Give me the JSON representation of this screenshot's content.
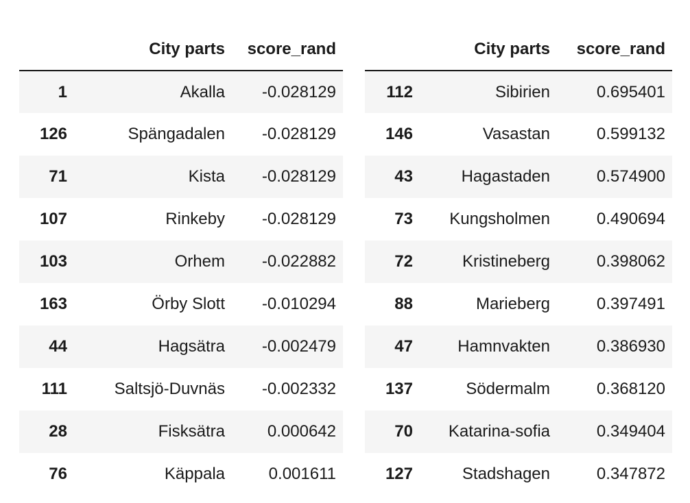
{
  "tables": [
    {
      "columns": [
        "",
        "City parts",
        "score_rand"
      ],
      "rows": [
        {
          "index": "1",
          "city": "Akalla",
          "score": "-0.028129"
        },
        {
          "index": "126",
          "city": "Spängadalen",
          "score": "-0.028129"
        },
        {
          "index": "71",
          "city": "Kista",
          "score": "-0.028129"
        },
        {
          "index": "107",
          "city": "Rinkeby",
          "score": "-0.028129"
        },
        {
          "index": "103",
          "city": "Orhem",
          "score": "-0.022882"
        },
        {
          "index": "163",
          "city": "Örby Slott",
          "score": "-0.010294"
        },
        {
          "index": "44",
          "city": "Hagsätra",
          "score": "-0.002479"
        },
        {
          "index": "111",
          "city": "Saltsjö-Duvnäs",
          "score": "-0.002332"
        },
        {
          "index": "28",
          "city": "Fisksätra",
          "score": "0.000642"
        },
        {
          "index": "76",
          "city": "Käppala",
          "score": "0.001611"
        }
      ]
    },
    {
      "columns": [
        "",
        "City parts",
        "score_rand"
      ],
      "rows": [
        {
          "index": "112",
          "city": "Sibirien",
          "score": "0.695401"
        },
        {
          "index": "146",
          "city": "Vasastan",
          "score": "0.599132"
        },
        {
          "index": "43",
          "city": "Hagastaden",
          "score": "0.574900"
        },
        {
          "index": "73",
          "city": "Kungsholmen",
          "score": "0.490694"
        },
        {
          "index": "72",
          "city": "Kristineberg",
          "score": "0.398062"
        },
        {
          "index": "88",
          "city": "Marieberg",
          "score": "0.397491"
        },
        {
          "index": "47",
          "city": "Hamnvakten",
          "score": "0.386930"
        },
        {
          "index": "137",
          "city": "Södermalm",
          "score": "0.368120"
        },
        {
          "index": "70",
          "city": "Katarina-sofia",
          "score": "0.349404"
        },
        {
          "index": "127",
          "city": "Stadshagen",
          "score": "0.347872"
        }
      ]
    }
  ]
}
